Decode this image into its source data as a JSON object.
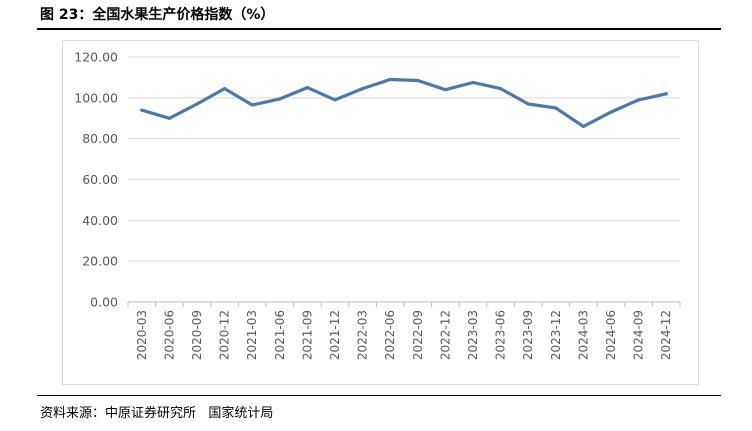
{
  "figure_title": "图 23：全国水果生产价格指数（%）",
  "source_text": "资料来源：中原证券研究所   国家统计局",
  "chart_data": {
    "type": "line",
    "title": "全国水果生产价格指数（%）",
    "xlabel": "",
    "ylabel": "",
    "ylim": [
      0,
      120
    ],
    "yticks": [
      "0.00",
      "20.00",
      "40.00",
      "60.00",
      "80.00",
      "100.00",
      "120.00"
    ],
    "grid": true,
    "legend": "none",
    "categories": [
      "2020-03",
      "2020-06",
      "2020-09",
      "2020-12",
      "2021-03",
      "2021-06",
      "2021-09",
      "2021-12",
      "2022-03",
      "2022-06",
      "2022-09",
      "2022-12",
      "2023-03",
      "2023-06",
      "2023-09",
      "2023-12",
      "2024-03",
      "2024-06",
      "2024-09",
      "2024-12"
    ],
    "series": [
      {
        "color": "#4e78a6",
        "values": [
          94.0,
          90.0,
          97.0,
          104.5,
          96.5,
          99.5,
          105.0,
          99.0,
          104.5,
          109.0,
          108.5,
          104.0,
          107.5,
          104.5,
          97.0,
          95.0,
          86.0,
          93.0,
          99.0,
          102.0
        ]
      }
    ]
  }
}
